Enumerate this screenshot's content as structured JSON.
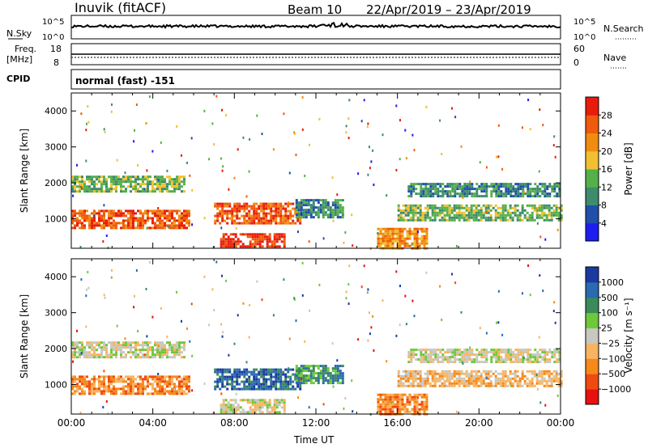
{
  "header": {
    "station": "Inuvik (fitACF)",
    "beam": "Beam 10",
    "date_range": "22/Apr/2019 – 23/Apr/2019"
  },
  "strip_labels": {
    "nsky": "N.Sky",
    "nsky_hi": "10^5",
    "nsky_lo": "10^0",
    "nsearch": "N.Search",
    "nsearch_hi": "10^5",
    "nsearch_lo": "10^0",
    "freq_label_1": "Freq.",
    "freq_label_2": "[MHz]",
    "freq_hi": "18",
    "freq_lo": "8",
    "nave": "Nave",
    "nave_hi": "60",
    "nave_lo": "0",
    "cpid": "CPID",
    "cpid_value": "normal (fast) -151"
  },
  "colors": {
    "power_scale": [
      "#1d1df0",
      "#1f4fa8",
      "#3d8c6c",
      "#55b04a",
      "#f0c030",
      "#f08c10",
      "#f05a0c",
      "#e81c0c"
    ],
    "velocity_scale": [
      "#e81010",
      "#f04a10",
      "#f5891a",
      "#f8b460",
      "#c8c8c0",
      "#6ec83a",
      "#3a8a5a",
      "#2a6ab0",
      "#1a3aa0"
    ],
    "frame": "#000000"
  },
  "chart_data": [
    {
      "type": "heatmap",
      "panel": "power",
      "ylabel": "Slant Range [km]",
      "xlabel": "",
      "x_ticks": [
        "00:00",
        "04:00",
        "08:00",
        "12:00",
        "16:00",
        "20:00",
        "00:00"
      ],
      "x_range_hours": [
        0,
        24
      ],
      "y_ticks": [
        1000,
        2000,
        3000,
        4000
      ],
      "y_range_km": [
        180,
        4500
      ],
      "colorbar_label": "Power [dB]",
      "colorbar_ticks": [
        4,
        8,
        12,
        16,
        20,
        24,
        28
      ],
      "echo_regions": [
        {
          "t0": 0.0,
          "t1": 5.8,
          "r0": 750,
          "r1": 1250,
          "level": 6
        },
        {
          "t0": 0.0,
          "t1": 5.5,
          "r0": 1750,
          "r1": 2200,
          "level": 3
        },
        {
          "t0": 7.3,
          "t1": 10.5,
          "r0": 200,
          "r1": 600,
          "level": 7
        },
        {
          "t0": 7.0,
          "t1": 11.2,
          "r0": 900,
          "r1": 1450,
          "level": 6
        },
        {
          "t0": 11.0,
          "t1": 13.3,
          "r0": 1050,
          "r1": 1550,
          "level": 2
        },
        {
          "t0": 15.0,
          "t1": 17.5,
          "r0": 200,
          "r1": 750,
          "level": 5
        },
        {
          "t0": 16.0,
          "t1": 24.0,
          "r0": 950,
          "r1": 1400,
          "level": 3
        },
        {
          "t0": 16.5,
          "t1": 24.0,
          "r0": 1600,
          "r1": 2000,
          "level": 2
        }
      ]
    },
    {
      "type": "heatmap",
      "panel": "velocity",
      "ylabel": "Slant Range [km]",
      "xlabel": "Time UT",
      "x_ticks": [
        "00:00",
        "04:00",
        "08:00",
        "12:00",
        "16:00",
        "20:00",
        "00:00"
      ],
      "x_range_hours": [
        0,
        24
      ],
      "y_ticks": [
        1000,
        2000,
        3000,
        4000
      ],
      "y_range_km": [
        180,
        4500
      ],
      "colorbar_label": "Velocity [m s⁻¹]",
      "colorbar_ticks": [
        "1000",
        "500",
        "100",
        "25",
        "−25",
        "−100",
        "−500",
        "−1000"
      ],
      "echo_regions": [
        {
          "t0": 0.0,
          "t1": 5.8,
          "r0": 750,
          "r1": 1250,
          "level": 2
        },
        {
          "t0": 0.0,
          "t1": 5.5,
          "r0": 1750,
          "r1": 2200,
          "level": 4
        },
        {
          "t0": 7.3,
          "t1": 10.5,
          "r0": 200,
          "r1": 600,
          "level": 4
        },
        {
          "t0": 7.0,
          "t1": 11.2,
          "r0": 900,
          "r1": 1450,
          "level": 7
        },
        {
          "t0": 11.0,
          "t1": 13.3,
          "r0": 1050,
          "r1": 1550,
          "level": 6
        },
        {
          "t0": 15.0,
          "t1": 17.5,
          "r0": 200,
          "r1": 750,
          "level": 2
        },
        {
          "t0": 16.0,
          "t1": 24.0,
          "r0": 950,
          "r1": 1400,
          "level": 3
        },
        {
          "t0": 16.5,
          "t1": 24.0,
          "r0": 1600,
          "r1": 2000,
          "level": 4
        }
      ]
    }
  ]
}
